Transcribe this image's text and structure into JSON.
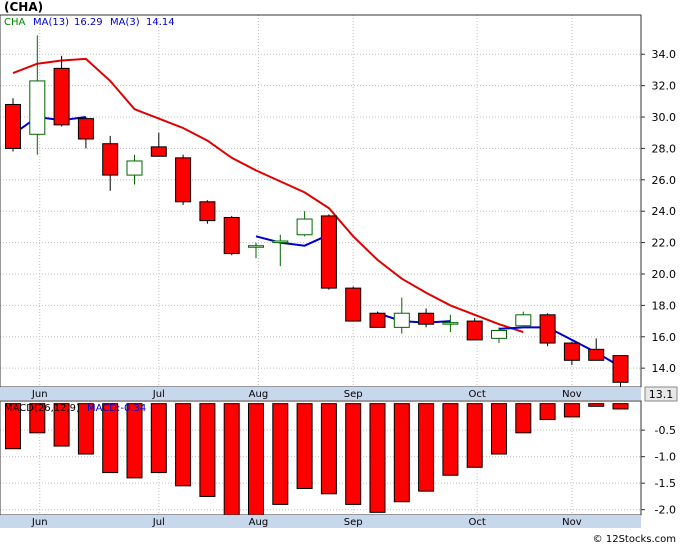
{
  "title": "(CHA)",
  "legend": {
    "symbol": "CHA",
    "ma13_label": "MA(13)",
    "ma13_value": "16.29",
    "ma3_label": "MA(3)",
    "ma3_value": "14.14"
  },
  "macd_label": {
    "params": "MACD(26,12,9)",
    "value": "MACD:-0.34"
  },
  "last_price": "13.1",
  "watermark": "© 12Stocks.com",
  "colors": {
    "down": "#ff0000",
    "up": "#ffffff",
    "ma13": "#e00000",
    "ma3": "#0000cc",
    "symbol": "#008800",
    "label_blue": "#0000cc",
    "axis_band": "#c8d8ec",
    "grid": "#c0c0c0"
  },
  "chart_data": [
    {
      "type": "candlestick",
      "title": "(CHA)",
      "x_labels": [
        "Jun",
        "Jul",
        "Aug",
        "Sep",
        "Oct",
        "Nov"
      ],
      "y_ticks": [
        "14.0",
        "16.0",
        "18.0",
        "20.0",
        "22.0",
        "24.0",
        "26.0",
        "28.0",
        "30.0",
        "32.0",
        "34.0"
      ],
      "ylim": [
        12.8,
        36.5
      ],
      "grid": true,
      "candles": [
        {
          "o": 30.8,
          "h": 31.2,
          "l": 27.8,
          "c": 28.0
        },
        {
          "o": 28.9,
          "h": 35.2,
          "l": 27.6,
          "c": 32.3
        },
        {
          "o": 33.1,
          "h": 33.9,
          "l": 29.4,
          "c": 29.5
        },
        {
          "o": 29.9,
          "h": 30.0,
          "l": 28.0,
          "c": 28.6
        },
        {
          "o": 28.3,
          "h": 28.8,
          "l": 25.3,
          "c": 26.3
        },
        {
          "o": 26.3,
          "h": 27.6,
          "l": 25.7,
          "c": 27.2
        },
        {
          "o": 28.1,
          "h": 29.0,
          "l": 27.5,
          "c": 27.5
        },
        {
          "o": 27.4,
          "h": 27.6,
          "l": 24.4,
          "c": 24.6
        },
        {
          "o": 24.6,
          "h": 24.7,
          "l": 23.2,
          "c": 23.4
        },
        {
          "o": 23.6,
          "h": 23.7,
          "l": 21.2,
          "c": 21.3
        },
        {
          "o": 21.8,
          "h": 22.0,
          "l": 21.0,
          "c": 21.8
        },
        {
          "o": 22.0,
          "h": 22.5,
          "l": 20.5,
          "c": 22.1
        },
        {
          "o": 22.5,
          "h": 24.0,
          "l": 22.4,
          "c": 23.5
        },
        {
          "o": 23.7,
          "h": 23.8,
          "l": 19.0,
          "c": 19.1
        },
        {
          "o": 19.1,
          "h": 19.2,
          "l": 17.0,
          "c": 17.0
        },
        {
          "o": 17.5,
          "h": 17.6,
          "l": 16.6,
          "c": 16.6
        },
        {
          "o": 16.6,
          "h": 18.5,
          "l": 16.2,
          "c": 17.5
        },
        {
          "o": 17.5,
          "h": 17.8,
          "l": 16.6,
          "c": 16.8
        },
        {
          "o": 16.9,
          "h": 17.4,
          "l": 16.3,
          "c": 16.9
        },
        {
          "o": 17.0,
          "h": 17.2,
          "l": 15.8,
          "c": 15.8
        },
        {
          "o": 15.9,
          "h": 16.6,
          "l": 15.6,
          "c": 16.4
        },
        {
          "o": 16.7,
          "h": 17.6,
          "l": 16.6,
          "c": 17.4
        },
        {
          "o": 17.4,
          "h": 17.5,
          "l": 15.4,
          "c": 15.6
        },
        {
          "o": 15.6,
          "h": 15.7,
          "l": 14.2,
          "c": 14.5
        },
        {
          "o": 15.2,
          "h": 15.9,
          "l": 14.5,
          "c": 14.5
        },
        {
          "o": 14.8,
          "h": 14.8,
          "l": 12.8,
          "c": 13.1
        }
      ],
      "ma13": [
        32.8,
        33.4,
        33.6,
        33.7,
        32.3,
        30.5,
        29.9,
        29.3,
        28.5,
        27.4,
        26.6,
        25.9,
        25.2,
        24.2,
        22.4,
        20.9,
        19.7,
        18.8,
        18.0,
        17.4,
        16.8,
        16.3
      ],
      "ma3": [
        28.9,
        30.0,
        29.8,
        30.0,
        null,
        null,
        null,
        null,
        null,
        null,
        22.4,
        22.0,
        21.8,
        22.5,
        null,
        17.5,
        17.0,
        16.9,
        17.0,
        null,
        16.5,
        16.6,
        16.6,
        15.8,
        15.0,
        14.1
      ],
      "last_value": 13.1
    },
    {
      "type": "bar",
      "title": "MACD(26,12,9)",
      "y_ticks": [
        "-0.5",
        "-1.0",
        "-1.5",
        "-2.0"
      ],
      "ylim": [
        -2.1,
        0.05
      ],
      "values": [
        -0.85,
        -0.55,
        -0.8,
        -0.95,
        -1.3,
        -1.4,
        -1.3,
        -1.55,
        -1.75,
        -2.1,
        -2.1,
        -1.9,
        -1.6,
        -1.7,
        -1.9,
        -2.05,
        -1.85,
        -1.65,
        -1.35,
        -1.2,
        -0.95,
        -0.55,
        -0.3,
        -0.25,
        -0.05,
        -0.1
      ],
      "current": -0.34
    }
  ]
}
